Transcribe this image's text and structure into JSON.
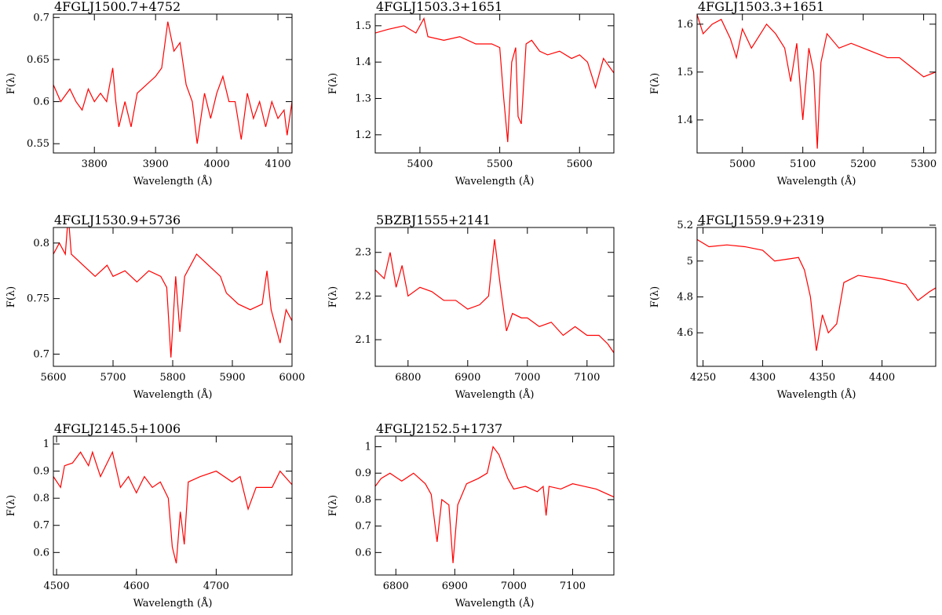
{
  "chart_data": [
    {
      "type": "line",
      "title": "4FGLJ1500.7+4752",
      "xlabel": "Wavelength (Å)",
      "ylabel": "F(λ)",
      "color": "#ff0000",
      "xlim": [
        3733,
        4123
      ],
      "xticks": [
        3800,
        3900,
        4000,
        4100
      ],
      "ylim": [
        0.539,
        0.704
      ],
      "yticks": [
        0.55,
        0.6,
        0.65,
        0.7
      ],
      "x": [
        3733,
        3745,
        3760,
        3770,
        3780,
        3790,
        3800,
        3810,
        3820,
        3830,
        3835,
        3840,
        3850,
        3860,
        3870,
        3900,
        3910,
        3920,
        3930,
        3940,
        3950,
        3960,
        3968,
        3980,
        3990,
        4000,
        4010,
        4020,
        4030,
        4040,
        4050,
        4060,
        4070,
        4080,
        4090,
        4100,
        4110,
        4115,
        4123
      ],
      "values": [
        0.62,
        0.6,
        0.615,
        0.6,
        0.59,
        0.615,
        0.6,
        0.61,
        0.6,
        0.64,
        0.6,
        0.57,
        0.6,
        0.57,
        0.61,
        0.63,
        0.64,
        0.695,
        0.66,
        0.67,
        0.62,
        0.6,
        0.55,
        0.61,
        0.58,
        0.61,
        0.63,
        0.6,
        0.6,
        0.555,
        0.61,
        0.58,
        0.6,
        0.57,
        0.6,
        0.58,
        0.59,
        0.56,
        0.6
      ]
    },
    {
      "type": "line",
      "title": "4FGLJ1503.3+1651",
      "xlabel": "Wavelength (Å)",
      "ylabel": "F(λ)",
      "color": "#ff0000",
      "xlim": [
        5344,
        5643
      ],
      "xticks": [
        5400,
        5500,
        5600
      ],
      "ylim": [
        1.15,
        1.532
      ],
      "yticks": [
        1.2,
        1.3,
        1.4,
        1.5
      ],
      "x": [
        5344,
        5360,
        5380,
        5395,
        5405,
        5410,
        5430,
        5450,
        5470,
        5490,
        5500,
        5505,
        5510,
        5515,
        5520,
        5523,
        5527,
        5533,
        5540,
        5550,
        5560,
        5575,
        5590,
        5600,
        5610,
        5620,
        5630,
        5643
      ],
      "values": [
        1.48,
        1.49,
        1.5,
        1.48,
        1.52,
        1.47,
        1.46,
        1.47,
        1.45,
        1.45,
        1.44,
        1.3,
        1.18,
        1.4,
        1.44,
        1.25,
        1.23,
        1.45,
        1.46,
        1.43,
        1.42,
        1.43,
        1.41,
        1.42,
        1.4,
        1.33,
        1.41,
        1.37
      ]
    },
    {
      "type": "line",
      "title": "4FGLJ1503.3+1651",
      "xlabel": "Wavelength (Å)",
      "ylabel": "F(λ)",
      "color": "#ff0000",
      "xlim": [
        4925,
        5320
      ],
      "xticks": [
        5000,
        5100,
        5200,
        5300
      ],
      "ylim": [
        1.331,
        1.621
      ],
      "yticks": [
        1.4,
        1.5,
        1.6
      ],
      "x": [
        4925,
        4935,
        4950,
        4965,
        4980,
        4990,
        5000,
        5015,
        5030,
        5040,
        5055,
        5070,
        5080,
        5090,
        5100,
        5110,
        5118,
        5124,
        5130,
        5140,
        5160,
        5180,
        5200,
        5220,
        5240,
        5260,
        5280,
        5300,
        5320
      ],
      "values": [
        1.62,
        1.58,
        1.6,
        1.61,
        1.57,
        1.53,
        1.59,
        1.55,
        1.58,
        1.6,
        1.58,
        1.55,
        1.48,
        1.56,
        1.4,
        1.55,
        1.5,
        1.34,
        1.52,
        1.58,
        1.55,
        1.56,
        1.55,
        1.54,
        1.53,
        1.53,
        1.51,
        1.49,
        1.5
      ]
    },
    {
      "type": "line",
      "title": "4FGLJ1530.9+5736",
      "xlabel": "Wavelength (Å)",
      "ylabel": "F(λ)",
      "color": "#ff0000",
      "xlim": [
        5600,
        6000
      ],
      "xticks": [
        5600,
        5700,
        5800,
        5900,
        6000
      ],
      "ylim": [
        0.689,
        0.814
      ],
      "yticks": [
        0.7,
        0.75,
        0.8
      ],
      "x": [
        5600,
        5610,
        5620,
        5625,
        5630,
        5650,
        5670,
        5690,
        5700,
        5720,
        5740,
        5760,
        5780,
        5790,
        5797,
        5805,
        5812,
        5820,
        5840,
        5860,
        5880,
        5890,
        5910,
        5930,
        5950,
        5958,
        5965,
        5975,
        5980,
        5990,
        6000
      ],
      "values": [
        0.79,
        0.8,
        0.79,
        0.825,
        0.79,
        0.78,
        0.77,
        0.78,
        0.77,
        0.775,
        0.765,
        0.775,
        0.77,
        0.76,
        0.697,
        0.77,
        0.72,
        0.77,
        0.79,
        0.78,
        0.77,
        0.755,
        0.745,
        0.74,
        0.745,
        0.775,
        0.74,
        0.72,
        0.71,
        0.74,
        0.73
      ]
    },
    {
      "type": "line",
      "title": "5BZBJ1555+2141",
      "xlabel": "Wavelength (Å)",
      "ylabel": "F(λ)",
      "color": "#ff0000",
      "xlim": [
        6745,
        7145
      ],
      "xticks": [
        6800,
        6900,
        7000,
        7100
      ],
      "ylim": [
        2.039,
        2.357
      ],
      "yticks": [
        2.1,
        2.2,
        2.3
      ],
      "x": [
        6745,
        6760,
        6770,
        6780,
        6790,
        6800,
        6820,
        6840,
        6860,
        6880,
        6900,
        6920,
        6935,
        6945,
        6955,
        6965,
        6975,
        6990,
        7000,
        7020,
        7040,
        7060,
        7080,
        7100,
        7120,
        7135,
        7145
      ],
      "values": [
        2.26,
        2.24,
        2.3,
        2.22,
        2.27,
        2.2,
        2.22,
        2.21,
        2.19,
        2.19,
        2.17,
        2.18,
        2.2,
        2.33,
        2.22,
        2.12,
        2.16,
        2.15,
        2.15,
        2.13,
        2.14,
        2.11,
        2.13,
        2.11,
        2.11,
        2.09,
        2.07
      ]
    },
    {
      "type": "line",
      "title": "4FGLJ1559.9+2319",
      "xlabel": "Wavelength (Å)",
      "ylabel": "F(λ)",
      "color": "#ff0000",
      "xlim": [
        4245,
        4445
      ],
      "xticks": [
        4250,
        4300,
        4350,
        4400
      ],
      "ylim": [
        4.413,
        5.187
      ],
      "yticks": [
        4.6,
        4.8,
        5,
        5.2
      ],
      "x": [
        4245,
        4255,
        4270,
        4285,
        4300,
        4310,
        4320,
        4330,
        4335,
        4340,
        4345,
        4350,
        4355,
        4362,
        4368,
        4380,
        4400,
        4420,
        4430,
        4440,
        4445
      ],
      "values": [
        5.12,
        5.08,
        5.09,
        5.08,
        5.06,
        5.0,
        5.01,
        5.02,
        4.95,
        4.8,
        4.5,
        4.7,
        4.6,
        4.65,
        4.88,
        4.92,
        4.9,
        4.87,
        4.78,
        4.83,
        4.85
      ]
    },
    {
      "type": "line",
      "title": "4FGLJ2145.5+1006",
      "xlabel": "Wavelength (Å)",
      "ylabel": "F(λ)",
      "color": "#ff0000",
      "xlim": [
        4496,
        4795
      ],
      "xticks": [
        4500,
        4600,
        4700
      ],
      "ylim": [
        0.517,
        1.029
      ],
      "yticks": [
        0.6,
        0.7,
        0.8,
        0.9,
        1
      ],
      "x": [
        4496,
        4505,
        4510,
        4520,
        4530,
        4540,
        4545,
        4555,
        4570,
        4580,
        4590,
        4600,
        4610,
        4620,
        4630,
        4640,
        4645,
        4650,
        4655,
        4660,
        4665,
        4680,
        4700,
        4720,
        4730,
        4740,
        4750,
        4770,
        4780,
        4795
      ],
      "values": [
        0.88,
        0.84,
        0.92,
        0.93,
        0.97,
        0.92,
        0.97,
        0.88,
        0.97,
        0.84,
        0.88,
        0.82,
        0.88,
        0.84,
        0.86,
        0.8,
        0.62,
        0.56,
        0.75,
        0.63,
        0.86,
        0.88,
        0.9,
        0.86,
        0.88,
        0.76,
        0.84,
        0.84,
        0.9,
        0.85
      ]
    },
    {
      "type": "line",
      "title": "4FGLJ2152.5+1737",
      "xlabel": "Wavelength (Å)",
      "ylabel": "F(λ)",
      "color": "#ff0000",
      "xlim": [
        6765,
        7170
      ],
      "xticks": [
        6800,
        6900,
        7000,
        7100
      ],
      "ylim": [
        0.515,
        1.04
      ],
      "yticks": [
        0.6,
        0.7,
        0.8,
        0.9,
        1
      ],
      "x": [
        6765,
        6775,
        6790,
        6810,
        6830,
        6850,
        6860,
        6870,
        6878,
        6890,
        6897,
        6905,
        6920,
        6940,
        6955,
        6965,
        6975,
        6990,
        7000,
        7020,
        7040,
        7050,
        7055,
        7060,
        7080,
        7100,
        7120,
        7140,
        7160,
        7170
      ],
      "values": [
        0.85,
        0.88,
        0.9,
        0.87,
        0.9,
        0.86,
        0.82,
        0.64,
        0.8,
        0.78,
        0.56,
        0.78,
        0.86,
        0.88,
        0.9,
        1.0,
        0.97,
        0.88,
        0.84,
        0.85,
        0.83,
        0.85,
        0.74,
        0.85,
        0.84,
        0.86,
        0.85,
        0.84,
        0.82,
        0.81
      ]
    }
  ]
}
